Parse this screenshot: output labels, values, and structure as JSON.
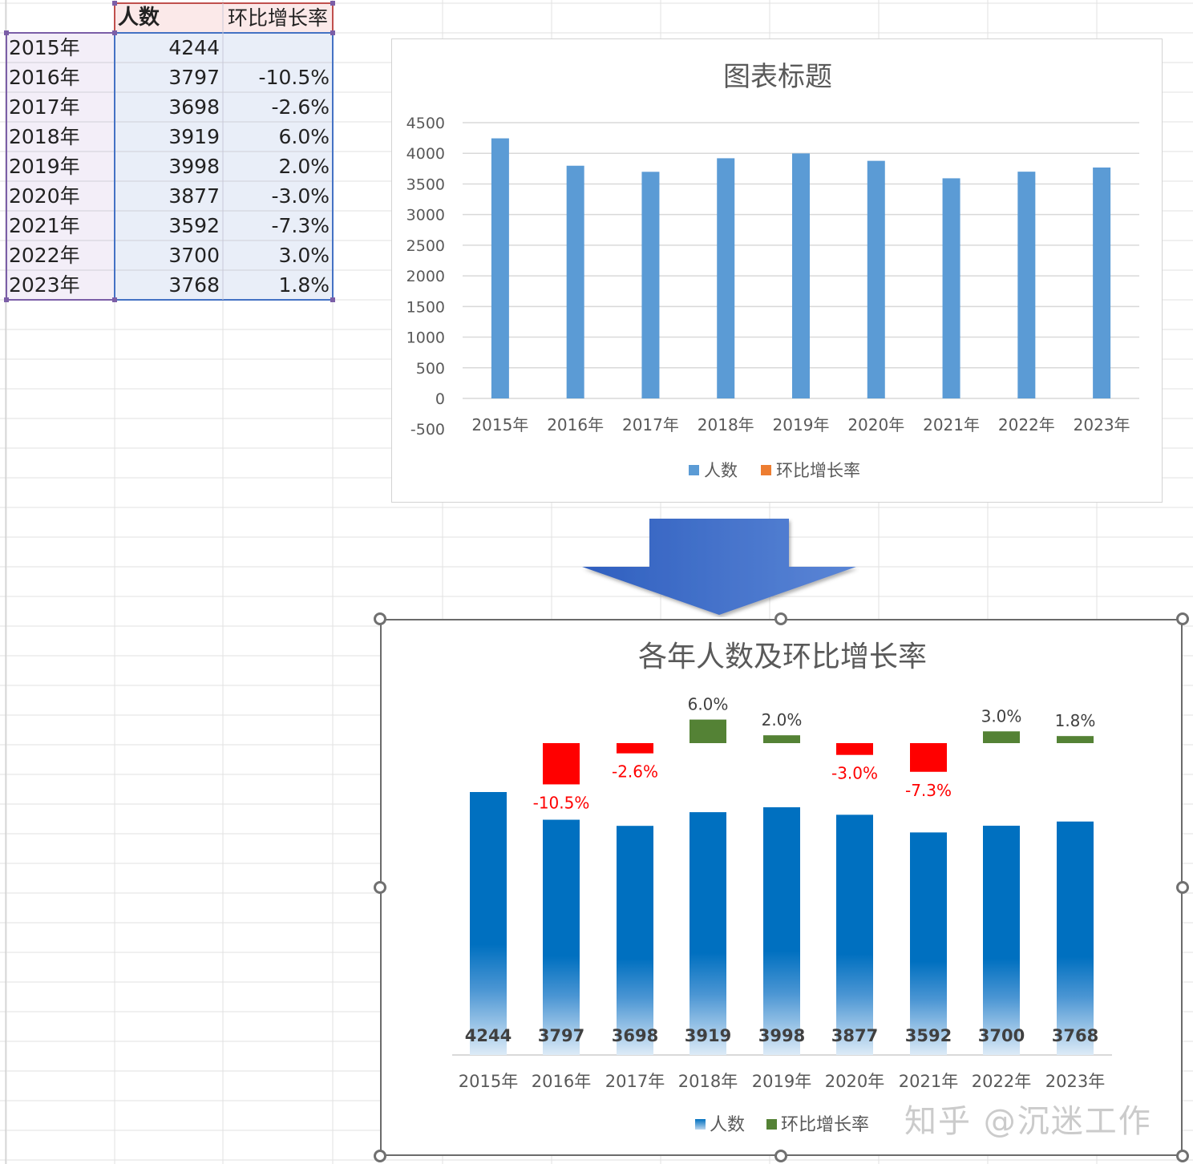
{
  "table": {
    "headers": [
      "人数",
      "环比增长率"
    ],
    "rows": [
      {
        "year": "2015年",
        "count": "4244",
        "rate": ""
      },
      {
        "year": "2016年",
        "count": "3797",
        "rate": "-10.5%"
      },
      {
        "year": "2017年",
        "count": "3698",
        "rate": "-2.6%"
      },
      {
        "year": "2018年",
        "count": "3919",
        "rate": "6.0%"
      },
      {
        "year": "2019年",
        "count": "3998",
        "rate": "2.0%"
      },
      {
        "year": "2020年",
        "count": "3877",
        "rate": "-3.0%"
      },
      {
        "year": "2021年",
        "count": "3592",
        "rate": "-7.3%"
      },
      {
        "year": "2022年",
        "count": "3700",
        "rate": "3.0%"
      },
      {
        "year": "2023年",
        "count": "3768",
        "rate": "1.8%"
      }
    ]
  },
  "chart_data": [
    {
      "type": "bar",
      "title": "图表标题",
      "categories": [
        "2015年",
        "2016年",
        "2017年",
        "2018年",
        "2019年",
        "2020年",
        "2021年",
        "2022年",
        "2023年"
      ],
      "series": [
        {
          "name": "人数",
          "values": [
            4244,
            3797,
            3698,
            3919,
            3998,
            3877,
            3592,
            3700,
            3768
          ],
          "color": "#5b9bd5"
        },
        {
          "name": "环比增长率",
          "values": [
            null,
            -0.105,
            -0.026,
            0.06,
            0.02,
            -0.03,
            -0.073,
            0.03,
            0.018
          ],
          "color": "#ed7d31"
        }
      ],
      "ylim": [
        -500,
        4500
      ],
      "yticks": [
        "4500",
        "4000",
        "3500",
        "3000",
        "2500",
        "2000",
        "1500",
        "1000",
        "500",
        "0",
        "-500"
      ],
      "grid": true,
      "legend": "bottom"
    },
    {
      "type": "bar",
      "title": "各年人数及环比增长率",
      "categories": [
        "2015年",
        "2016年",
        "2017年",
        "2018年",
        "2019年",
        "2020年",
        "2021年",
        "2022年",
        "2023年"
      ],
      "series": [
        {
          "name": "人数",
          "values": [
            4244,
            3797,
            3698,
            3919,
            3998,
            3877,
            3592,
            3700,
            3768
          ],
          "labels": [
            "4244",
            "3797",
            "3698",
            "3919",
            "3998",
            "3877",
            "3592",
            "3700",
            "3768"
          ],
          "color": "#0070c0"
        },
        {
          "name": "环比增长率",
          "values": [
            null,
            -10.5,
            -2.6,
            6.0,
            2.0,
            -3.0,
            -7.3,
            3.0,
            1.8
          ],
          "labels": [
            "",
            "-10.5%",
            "-2.6%",
            "6.0%",
            "2.0%",
            "-3.0%",
            "-7.3%",
            "3.0%",
            "1.8%"
          ],
          "color_positive": "#548235",
          "color_negative": "#ff0000"
        }
      ],
      "grid": false,
      "legend": "bottom"
    }
  ],
  "watermark": "知乎 @沉迷工作"
}
